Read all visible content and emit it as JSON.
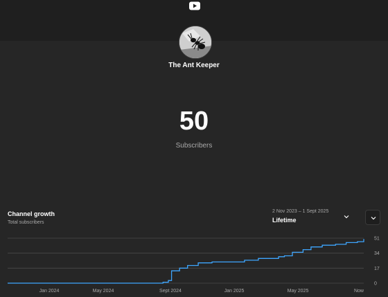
{
  "header": {
    "logo_icon": "youtube-play-icon",
    "bg_color": "#1f1f1f"
  },
  "channel": {
    "name": "The Ant Keeper",
    "avatar_icon": "ant-avatar-icon"
  },
  "subscribers": {
    "count": "50",
    "label": "Subscribers"
  },
  "growth": {
    "title": "Channel growth",
    "subtitle": "Total subscribers",
    "range_dates": "2 Nov 2023 – 1 Sept 2025",
    "range_label": "Lifetime",
    "dropdown_icon": "chevron-down-icon",
    "expand_icon": "chevron-down-icon"
  },
  "chart_data": {
    "type": "line",
    "title": "",
    "xlabel": "",
    "ylabel": "",
    "x_ticks": [
      "Jan 2024",
      "May 2024",
      "Sept 2024",
      "Jan 2025",
      "May 2025",
      "Now"
    ],
    "y_ticks": [
      0,
      17,
      34,
      51
    ],
    "ylim": [
      0,
      51
    ],
    "xlim": [
      "2023-11-02",
      "2025-09-01"
    ],
    "grid": true,
    "line_color": "#3ea6ff",
    "series": [
      {
        "x": [
          "2023-11-02",
          "2024-08-01",
          "2024-08-20",
          "2024-08-30",
          "2024-09-05",
          "2024-09-20",
          "2024-10-05",
          "2024-10-25",
          "2024-11-20",
          "2024-12-20",
          "2025-01-20",
          "2025-02-15",
          "2025-03-10",
          "2025-03-25",
          "2025-04-05",
          "2025-04-20",
          "2025-05-10",
          "2025-05-25",
          "2025-06-15",
          "2025-07-10",
          "2025-07-30",
          "2025-08-20",
          "2025-09-01"
        ],
        "y": [
          0,
          0,
          1,
          3,
          14,
          17,
          20,
          23,
          24,
          24,
          26,
          28,
          28,
          30,
          31,
          35,
          38,
          41,
          43,
          44,
          46,
          47,
          50
        ]
      }
    ]
  }
}
